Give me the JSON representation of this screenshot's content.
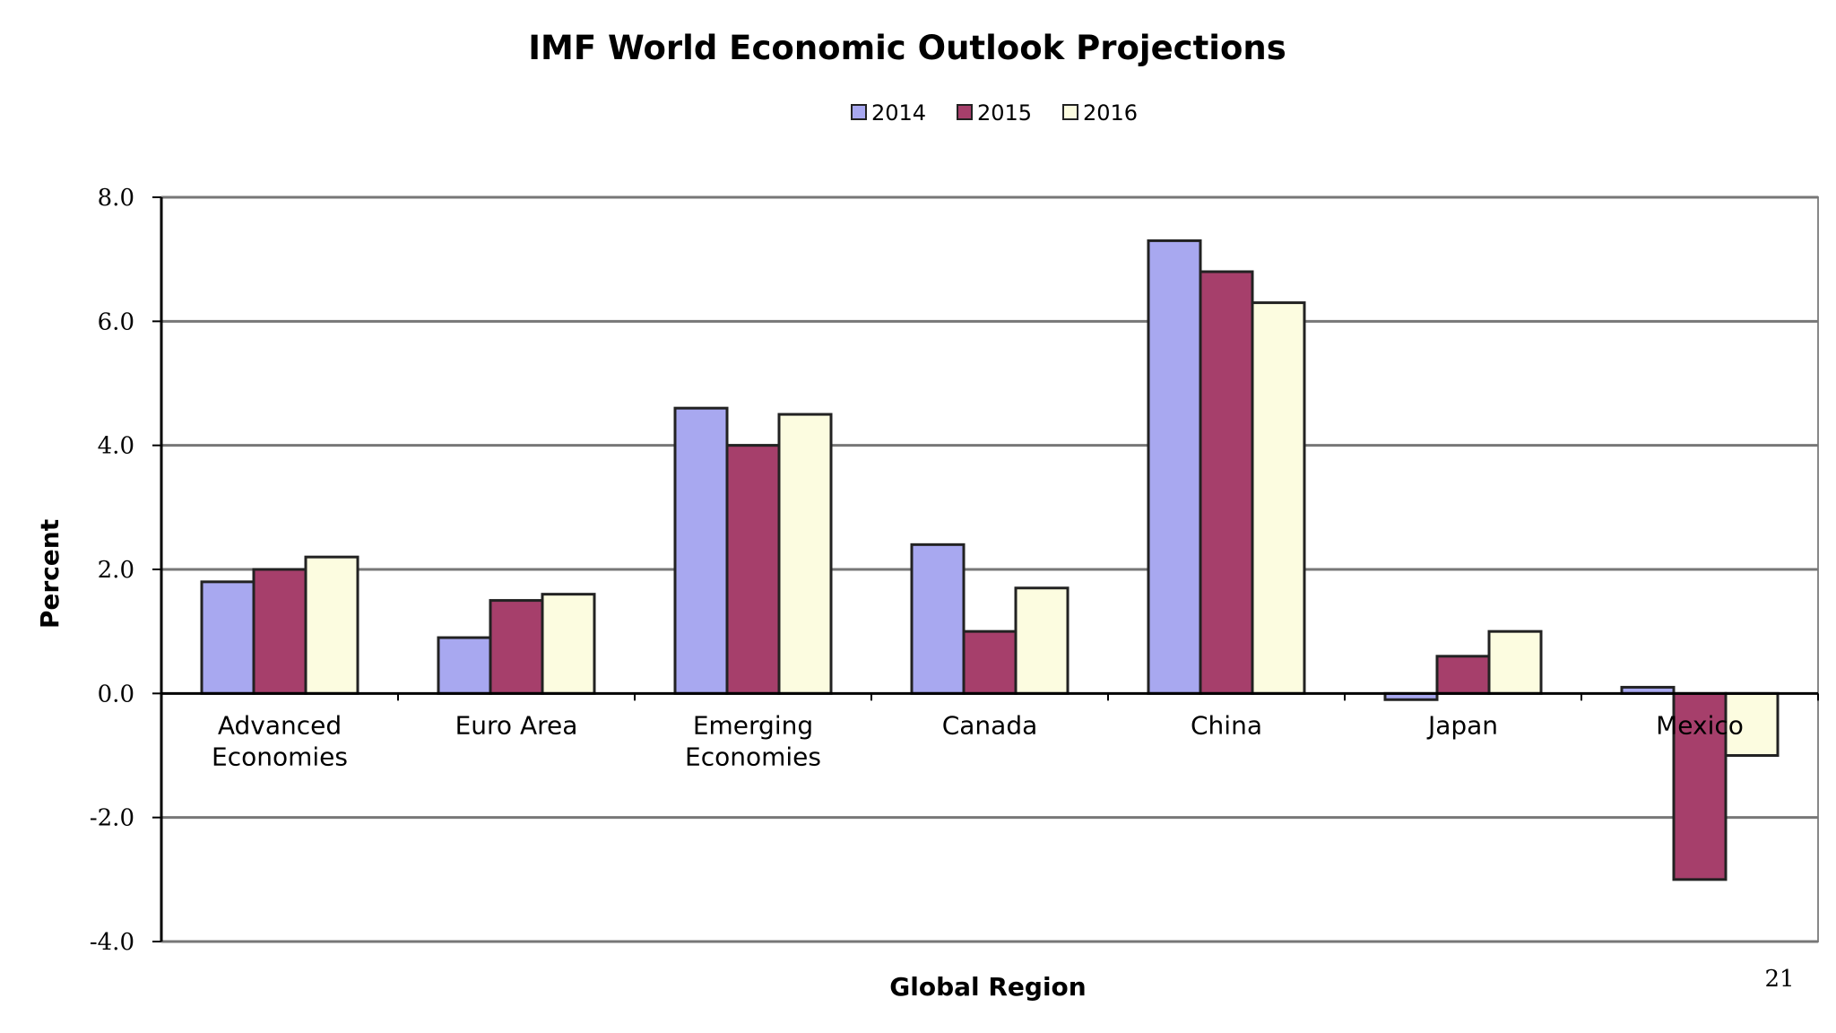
{
  "chart_data": {
    "type": "bar",
    "title": "IMF World Economic Outlook Projections",
    "xlabel": "Global Region",
    "ylabel": "Percent",
    "ylim": [
      -4.0,
      8.0
    ],
    "yticks": [
      8.0,
      6.0,
      4.0,
      2.0,
      0.0,
      -2.0,
      -4.0
    ],
    "ytick_labels": [
      "8.0",
      "6.0",
      "4.0",
      "2.0",
      "0.0",
      "-2.0",
      "-4.0"
    ],
    "grid": true,
    "legend_position": "top-center",
    "categories": [
      [
        "Advanced",
        "Economies"
      ],
      [
        "Euro Area"
      ],
      [
        "Emerging",
        "Economies"
      ],
      [
        "Canada"
      ],
      [
        "China"
      ],
      [
        "Japan"
      ],
      [
        "Mexico"
      ]
    ],
    "series": [
      {
        "name": "2014",
        "color": "#a8a8f0",
        "values": [
          1.8,
          0.9,
          4.6,
          2.4,
          7.3,
          -0.1,
          0.1
        ]
      },
      {
        "name": "2015",
        "color": "#a63f6b",
        "values": [
          2.0,
          1.5,
          4.0,
          1.0,
          6.8,
          0.6,
          -3.0
        ]
      },
      {
        "name": "2016",
        "color": "#fcfce0",
        "values": [
          2.2,
          1.6,
          4.5,
          1.7,
          6.3,
          1.0,
          -1.0
        ]
      }
    ]
  },
  "page_number": "21"
}
